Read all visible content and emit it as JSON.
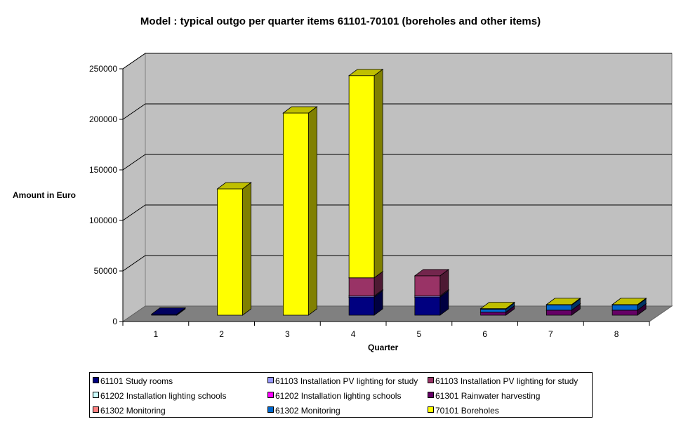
{
  "chart_data": {
    "type": "bar",
    "stacked": true,
    "three_d": true,
    "title": "Model : typical outgo per quarter items 61101-70101 (boreholes and other items)",
    "xlabel": "Quarter",
    "ylabel": "Amount in Euro",
    "ylim": [
      0,
      250000
    ],
    "yticks": [
      "0",
      "50000",
      "100000",
      "150000",
      "200000",
      "250000"
    ],
    "categories": [
      "1",
      "2",
      "3",
      "4",
      "5",
      "6",
      "7",
      "8"
    ],
    "grid": true,
    "legend_position": "bottom",
    "series": [
      {
        "name": "61101 Study rooms",
        "color": "#000080",
        "values": [
          1000,
          0,
          0,
          18000,
          18000,
          0,
          0,
          0
        ]
      },
      {
        "name": "61103 Installation PV lighting for study",
        "color": "#9999FF",
        "values": [
          0,
          0,
          0,
          1000,
          1000,
          0,
          0,
          0
        ]
      },
      {
        "name": "61103 Installation PV lighting for study",
        "color": "#993366",
        "values": [
          0,
          0,
          0,
          18000,
          20000,
          0,
          0,
          0
        ]
      },
      {
        "name": "61202 Installation lighting schools",
        "color": "#CCFFFF",
        "values": [
          0,
          0,
          0,
          0,
          0,
          0,
          0,
          0
        ]
      },
      {
        "name": "61202 Installation lighting schools",
        "color": "#FF00FF",
        "values": [
          0,
          0,
          0,
          0,
          0,
          0,
          0,
          0
        ]
      },
      {
        "name": "61301 Rainwater harvesting",
        "color": "#660066",
        "values": [
          0,
          0,
          0,
          0,
          0,
          3000,
          5000,
          5000
        ]
      },
      {
        "name": "61302 Monitoring",
        "color": "#FF8080",
        "values": [
          0,
          0,
          0,
          0,
          0,
          0,
          0,
          0
        ]
      },
      {
        "name": "61302 Monitoring",
        "color": "#0066CC",
        "values": [
          0,
          0,
          0,
          0,
          0,
          3000,
          5000,
          5000
        ]
      },
      {
        "name": "70101 Boreholes",
        "color": "#FFFF00",
        "values": [
          0,
          125000,
          200000,
          200000,
          0,
          500,
          500,
          500
        ]
      }
    ]
  }
}
